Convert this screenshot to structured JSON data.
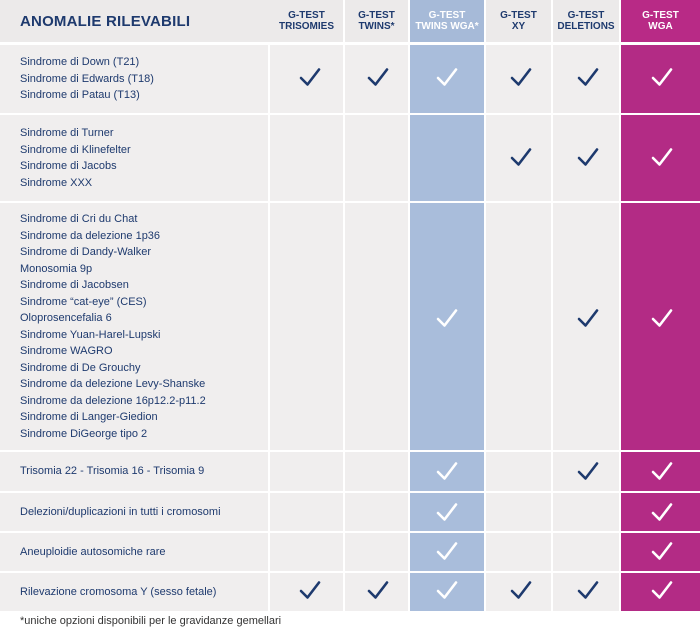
{
  "header": {
    "title": "ANOMALIE RILEVABILI",
    "columns": [
      {
        "line1": "G-TEST",
        "line2": "TRISOMIES"
      },
      {
        "line1": "G-TEST",
        "line2": "TWINS*"
      },
      {
        "line1": "G-TEST",
        "line2": "TWINS WGA*"
      },
      {
        "line1": "G-TEST",
        "line2": "XY"
      },
      {
        "line1": "G-TEST",
        "line2": "DELETIONS"
      },
      {
        "line1": "G-TEST",
        "line2": "WGA"
      }
    ]
  },
  "rows": [
    {
      "labels": [
        "Sindrome di Down (T21)",
        "Sindrome di Edwards (T18)",
        "Sindrome di Patau (T13)"
      ],
      "checks": [
        true,
        true,
        true,
        true,
        true,
        true
      ]
    },
    {
      "labels": [
        "Sindrome di Turner",
        "Sindrome di Klinefelter",
        "Sindrome di Jacobs",
        "Sindrome XXX"
      ],
      "checks": [
        false,
        false,
        false,
        true,
        true,
        true
      ]
    },
    {
      "labels": [
        "Sindrome di Cri du Chat",
        "Sindrome da delezione 1p36",
        "Sindrome di Dandy-Walker",
        "Monosomia 9p",
        "Sindrome di Jacobsen",
        "Sindrome “cat-eye” (CES)",
        "Oloprosencefalia 6",
        "Sindrome Yuan-Harel-Lupski",
        "Sindrome WAGRO",
        "Sindrome di De Grouchy",
        "Sindrome da delezione Levy-Shanske",
        "Sindrome da delezione 16p12.2-p11.2",
        "Sindrome di Langer-Giedion",
        "Sindrome DiGeorge tipo 2"
      ],
      "checks": [
        false,
        false,
        true,
        false,
        true,
        true
      ]
    },
    {
      "labels": [
        "Trisomia 22 - Trisomia 16 - Trisomia 9"
      ],
      "checks": [
        false,
        false,
        true,
        false,
        true,
        true
      ]
    },
    {
      "labels": [
        "Delezioni/duplicazioni in tutti i cromosomi"
      ],
      "checks": [
        false,
        false,
        true,
        false,
        false,
        true
      ]
    },
    {
      "labels": [
        "Aneuploidie autosomiche rare"
      ],
      "checks": [
        false,
        false,
        true,
        false,
        false,
        true
      ]
    },
    {
      "labels": [
        "Rilevazione cromosoma Y (sesso fetale)"
      ],
      "checks": [
        true,
        true,
        true,
        true,
        true,
        true
      ]
    }
  ],
  "footnote": "*uniche opzioni disponibili per le gravidanze gemellari",
  "colors": {
    "navy": "#1e3a6e",
    "row_bg": "#f0eeee",
    "twins_wga": "#a9bddb",
    "wga": "#b32b85"
  },
  "icons": {
    "check": "check-icon"
  }
}
